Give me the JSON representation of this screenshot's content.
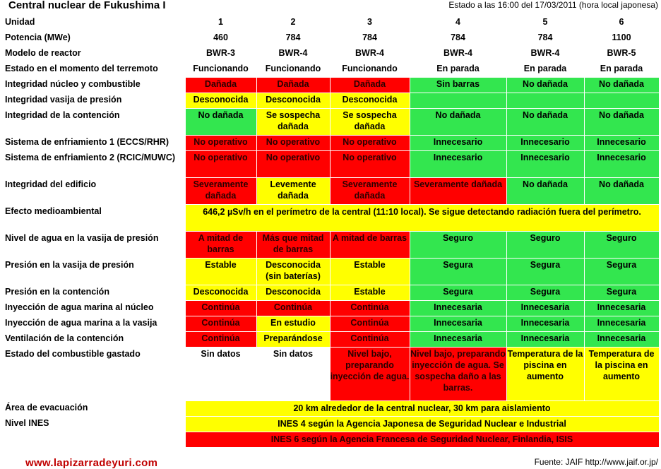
{
  "title": "Central nuclear de Fukushima I",
  "status_text": "Estado a las 16:00 del 17/03/2011 (hora local japonesa)",
  "rows": [
    {
      "label": "Unidad",
      "cells": [
        {
          "t": "1",
          "c": "plain"
        },
        {
          "t": "2",
          "c": "plain"
        },
        {
          "t": "3",
          "c": "plain"
        },
        {
          "t": "4",
          "c": "plain"
        },
        {
          "t": "5",
          "c": "plain"
        },
        {
          "t": "6",
          "c": "plain"
        }
      ]
    },
    {
      "label": "Potencia (MWe)",
      "cells": [
        {
          "t": "460",
          "c": "plain"
        },
        {
          "t": "784",
          "c": "plain"
        },
        {
          "t": "784",
          "c": "plain"
        },
        {
          "t": "784",
          "c": "plain"
        },
        {
          "t": "784",
          "c": "plain"
        },
        {
          "t": "1100",
          "c": "plain"
        }
      ]
    },
    {
      "label": "Modelo de reactor",
      "cells": [
        {
          "t": "BWR-3",
          "c": "plain"
        },
        {
          "t": "BWR-4",
          "c": "plain"
        },
        {
          "t": "BWR-4",
          "c": "plain"
        },
        {
          "t": "BWR-4",
          "c": "plain"
        },
        {
          "t": "BWR-4",
          "c": "plain"
        },
        {
          "t": "BWR-5",
          "c": "plain"
        }
      ]
    },
    {
      "label": "Estado en el momento del terremoto",
      "cells": [
        {
          "t": "Funcionando",
          "c": "plain"
        },
        {
          "t": "Funcionando",
          "c": "plain"
        },
        {
          "t": "Funcionando",
          "c": "plain"
        },
        {
          "t": "En parada",
          "c": "plain"
        },
        {
          "t": "En parada",
          "c": "plain"
        },
        {
          "t": "En parada",
          "c": "plain"
        }
      ]
    },
    {
      "label": "Integridad núcleo y combustible",
      "cells": [
        {
          "t": "Dañada",
          "c": "red"
        },
        {
          "t": "Dañada",
          "c": "red"
        },
        {
          "t": "Dañada",
          "c": "red"
        },
        {
          "t": "Sin barras",
          "c": "green"
        },
        {
          "t": "No dañada",
          "c": "green"
        },
        {
          "t": "No dañada",
          "c": "green"
        }
      ]
    },
    {
      "label": "Integridad vasija de presión",
      "cells": [
        {
          "t": "Desconocida",
          "c": "yellow"
        },
        {
          "t": "Desconocida",
          "c": "yellow"
        },
        {
          "t": "Desconocida",
          "c": "yellow"
        },
        {
          "t": "",
          "c": "green"
        },
        {
          "t": "",
          "c": "green"
        },
        {
          "t": "",
          "c": "green"
        }
      ]
    },
    {
      "label": "Integridad de la contención",
      "cells": [
        {
          "t": "No dañada",
          "c": "green"
        },
        {
          "t": "Se sospecha dañada",
          "c": "yellow"
        },
        {
          "t": "Se sospecha dañada",
          "c": "yellow"
        },
        {
          "t": "No dañada",
          "c": "green"
        },
        {
          "t": "No dañada",
          "c": "green"
        },
        {
          "t": "No dañada",
          "c": "green"
        }
      ]
    },
    {
      "label": "Sistema de enfriamiento 1 (ECCS/RHR)",
      "cells": [
        {
          "t": "No operativo",
          "c": "red"
        },
        {
          "t": "No operativo",
          "c": "red"
        },
        {
          "t": "No operativo",
          "c": "red"
        },
        {
          "t": "Innecesario",
          "c": "green"
        },
        {
          "t": "Innecesario",
          "c": "green"
        },
        {
          "t": "Innecesario",
          "c": "green"
        }
      ]
    },
    {
      "label": "Sistema de enfriamiento 2 (RCIC/MUWC)",
      "cells": [
        {
          "t": "No operativo",
          "c": "red"
        },
        {
          "t": "No operativo",
          "c": "red"
        },
        {
          "t": "No operativo",
          "c": "red"
        },
        {
          "t": "Innecesario",
          "c": "green"
        },
        {
          "t": "Innecesario",
          "c": "green"
        },
        {
          "t": "Innecesario",
          "c": "green"
        }
      ]
    },
    {
      "label": "Integridad del edificio",
      "cells": [
        {
          "t": "Severamente dañada",
          "c": "red"
        },
        {
          "t": "Levemente dañada",
          "c": "yellow"
        },
        {
          "t": "Severamente dañada",
          "c": "red"
        },
        {
          "t": "Severamente dañada",
          "c": "red"
        },
        {
          "t": "No dañada",
          "c": "green"
        },
        {
          "t": "No dañada",
          "c": "green"
        }
      ]
    },
    {
      "label": "Efecto medioambiental",
      "span": {
        "t": "646,2 µSv/h en el perímetro de la central (11:10 local). Se sigue detectando radiación fuera del perímetro.",
        "c": "yellow"
      }
    },
    {
      "label": "Nivel de agua en la vasija de presión",
      "cells": [
        {
          "t": "A mitad de barras",
          "c": "red"
        },
        {
          "t": "Más que mitad de barras",
          "c": "red"
        },
        {
          "t": "A mitad de barras",
          "c": "red"
        },
        {
          "t": "Seguro",
          "c": "green"
        },
        {
          "t": "Seguro",
          "c": "green"
        },
        {
          "t": "Seguro",
          "c": "green"
        }
      ]
    },
    {
      "label": "Presión en la vasija de presión",
      "cells": [
        {
          "t": "Estable",
          "c": "yellow"
        },
        {
          "t": "Desconocida (sin baterías)",
          "c": "yellow"
        },
        {
          "t": "Estable",
          "c": "yellow"
        },
        {
          "t": "Segura",
          "c": "green"
        },
        {
          "t": "Segura",
          "c": "green"
        },
        {
          "t": "Segura",
          "c": "green"
        }
      ]
    },
    {
      "label": "Presión en la contención",
      "cells": [
        {
          "t": "Desconocida",
          "c": "yellow"
        },
        {
          "t": "Desconocida",
          "c": "yellow"
        },
        {
          "t": "Estable",
          "c": "yellow"
        },
        {
          "t": "Segura",
          "c": "green"
        },
        {
          "t": "Segura",
          "c": "green"
        },
        {
          "t": "Segura",
          "c": "green"
        }
      ]
    },
    {
      "label": "Inyección de agua marina al núcleo",
      "cells": [
        {
          "t": "Continúa",
          "c": "red"
        },
        {
          "t": "Continúa",
          "c": "red"
        },
        {
          "t": "Continúa",
          "c": "red"
        },
        {
          "t": "Innecesaria",
          "c": "green"
        },
        {
          "t": "Innecesaria",
          "c": "green"
        },
        {
          "t": "Innecesaria",
          "c": "green"
        }
      ]
    },
    {
      "label": "Inyección de agua marina a la vasija",
      "cells": [
        {
          "t": "Continúa",
          "c": "red"
        },
        {
          "t": "En estudio",
          "c": "yellow"
        },
        {
          "t": "Continúa",
          "c": "red"
        },
        {
          "t": "Innecesaria",
          "c": "green"
        },
        {
          "t": "Innecesaria",
          "c": "green"
        },
        {
          "t": "Innecesaria",
          "c": "green"
        }
      ]
    },
    {
      "label": "Ventilación de la contención",
      "cells": [
        {
          "t": "Continúa",
          "c": "red"
        },
        {
          "t": "Preparándose",
          "c": "yellow"
        },
        {
          "t": "Continúa",
          "c": "red"
        },
        {
          "t": "Innecesaria",
          "c": "green"
        },
        {
          "t": "Innecesaria",
          "c": "green"
        },
        {
          "t": "Innecesaria",
          "c": "green"
        }
      ]
    },
    {
      "label": "Estado del combustible gastado",
      "cells": [
        {
          "t": "Sin datos",
          "c": "plain"
        },
        {
          "t": "Sin datos",
          "c": "plain"
        },
        {
          "t": "Nivel bajo, preparando inyección de agua.",
          "c": "red"
        },
        {
          "t": "Nivel bajo, preparando inyección de agua. Se sospecha daño a las barras.",
          "c": "red"
        },
        {
          "t": "Temperatura de la piscina en aumento",
          "c": "yellow"
        },
        {
          "t": "Temperatura de la piscina en aumento",
          "c": "yellow"
        }
      ]
    },
    {
      "label": "Área de evacuación",
      "span": {
        "t": "20 km alrededor de la central nuclear, 30 km para aislamiento",
        "c": "yellow"
      }
    },
    {
      "label": "Nivel INES",
      "span": {
        "t": "INES 4 según la Agencia Japonesa de Seguridad Nuclear e Industrial",
        "c": "yellow"
      }
    },
    {
      "label": "",
      "span": {
        "t": "INES 6 según la Agencia Francesa de Seguridad Nuclear, Finlandia, ISIS",
        "c": "red"
      }
    }
  ],
  "footer_left": "www.lapizarradeyuri.com",
  "footer_right": "Fuente: JAIF  http://www.jaif.or.jp/"
}
